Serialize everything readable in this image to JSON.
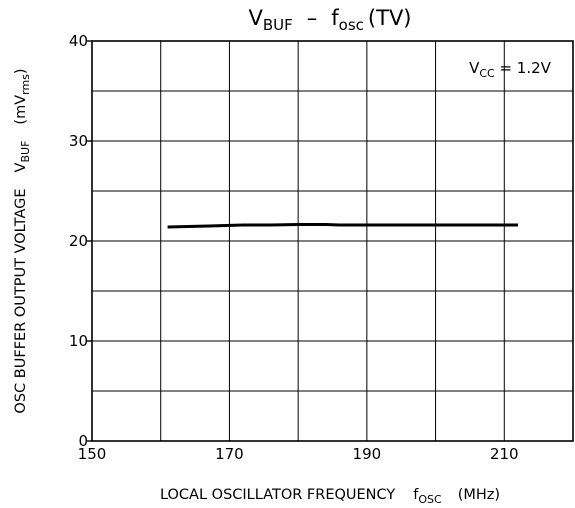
{
  "chart_data": {
    "type": "line",
    "title": {
      "main": "V",
      "main_sub": "BUF",
      "dash": "–",
      "f": "f",
      "f_sub": "osc",
      "suffix": "(TV)"
    },
    "xlabel": {
      "text": "LOCAL OSCILLATOR FREQUENCY",
      "f": "f",
      "f_sub": "OSC",
      "unit": "(MHz)"
    },
    "ylabel": {
      "text": "OSC BUFFER OUTPUT VOLTAGE",
      "v": "V",
      "v_sub": "BUF",
      "unit_open": "(mV",
      "unit_sub": "rms",
      "unit_close": ")"
    },
    "annotation": {
      "v": "V",
      "v_sub": "CC",
      "rest": " = 1.2V"
    },
    "xlim": [
      150,
      220
    ],
    "ylim": [
      0,
      40
    ],
    "x_ticks": [
      150,
      170,
      190,
      210
    ],
    "y_ticks": [
      0,
      10,
      20,
      30,
      40
    ],
    "x_grid_step": 10,
    "y_grid_step": 5,
    "grid": true,
    "series": [
      {
        "x": [
          161,
          167,
          172,
          176,
          180,
          184,
          186,
          190,
          195,
          200,
          206,
          212
        ],
        "y": [
          21.4,
          21.5,
          21.6,
          21.6,
          21.65,
          21.65,
          21.6,
          21.6,
          21.6,
          21.6,
          21.6,
          21.6
        ]
      }
    ],
    "colors": {
      "line": "#000000",
      "grid": "#000000"
    }
  }
}
